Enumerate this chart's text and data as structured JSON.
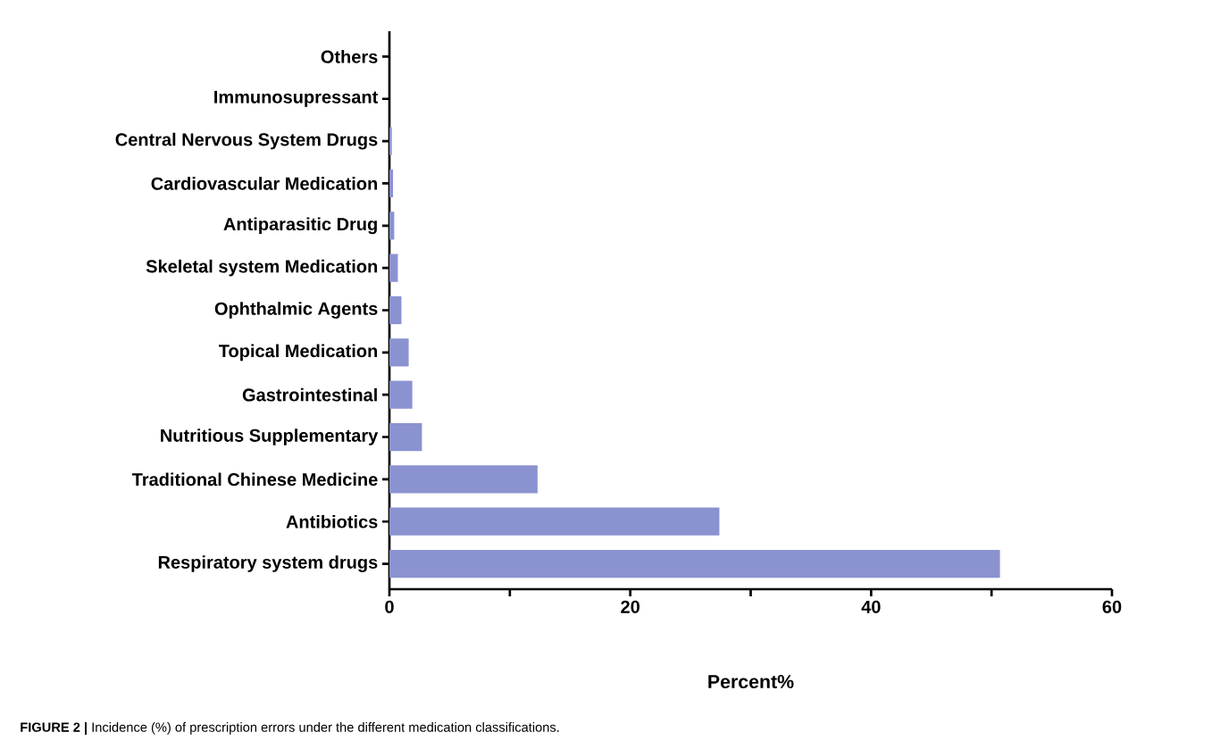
{
  "chart_data": {
    "type": "bar",
    "orientation": "horizontal",
    "categories": [
      "Others",
      "Immunosupressant",
      "Central Nervous System Drugs",
      "Cardiovascular Medication",
      "Antiparasitic Drug",
      "Skeletal system Medication",
      "Ophthalmic Agents",
      "Topical Medication",
      "Gastrointestinal",
      "Nutritious Supplementary",
      "Traditional Chinese Medicine",
      "Antibiotics",
      "Respiratory system drugs"
    ],
    "values": [
      0,
      0,
      0.2,
      0.3,
      0.4,
      0.7,
      1.0,
      1.6,
      1.9,
      2.7,
      12.3,
      27.4,
      50.7
    ],
    "color": "#8b92d0",
    "xlim": [
      0,
      60
    ],
    "xticks": [
      0,
      {
        "value": 10,
        "label": null
      },
      20,
      {
        "value": 30,
        "label": null
      },
      40,
      {
        "value": 50,
        "label": null
      },
      60
    ],
    "xlabel": "Percent%",
    "annotations": [
      "**FIGURE 2 |** Incidence (%) of prescription errors under the different medication classifications."
    ]
  }
}
